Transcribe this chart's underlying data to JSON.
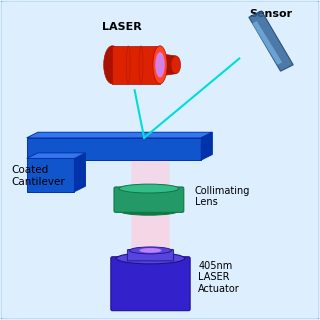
{
  "bg_color": "#ddeeff",
  "labels": {
    "laser_head": "LASER",
    "sensor": "Sensor",
    "cantilever": "Coated\nCantilever",
    "collimating": "Collimating\nLens",
    "actuator": "405nm\nLASER\nActuator"
  },
  "colors": {
    "border_color": "#5599cc",
    "laser_red": "#dd2200",
    "laser_red_dark": "#aa1100",
    "laser_red_light": "#ff4422",
    "blue_cantilever": "#1155cc",
    "blue_cantilever_dark": "#0033aa",
    "blue_cantilever_top": "#3377ee",
    "teal_lens": "#229966",
    "teal_lens_top": "#33bb88",
    "teal_lens_dark": "#117744",
    "purple_actuator": "#3322cc",
    "purple_actuator_dark": "#221188",
    "purple_actuator_top": "#5544dd",
    "sensor_color": "#336699",
    "beam_color": "#00dddd",
    "pink_beam": "#ffccdd",
    "purple_glow": "#cc88ff"
  }
}
